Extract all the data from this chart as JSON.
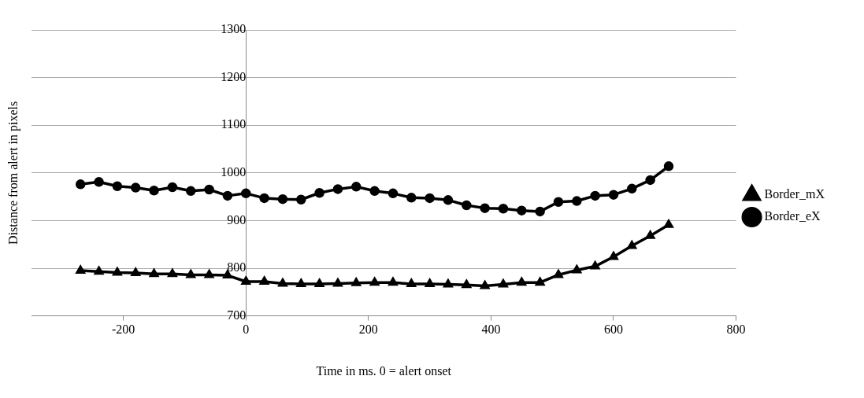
{
  "chart_data": {
    "type": "line",
    "xlabel": "Time in ms. 0 = alert onset",
    "ylabel": "Distance from alert in pixels",
    "x": [
      -270,
      -240,
      -210,
      -180,
      -150,
      -120,
      -90,
      -60,
      -30,
      0,
      30,
      60,
      90,
      120,
      150,
      180,
      210,
      240,
      270,
      300,
      330,
      360,
      390,
      420,
      450,
      480,
      510,
      540,
      570,
      600,
      630,
      660,
      690
    ],
    "series": [
      {
        "name": "Border_mX",
        "color": "#000000",
        "marker": "triangle",
        "values": [
          795,
          793,
          791,
          790,
          788,
          788,
          786,
          786,
          785,
          772,
          772,
          768,
          767,
          767,
          768,
          769,
          770,
          770,
          767,
          767,
          766,
          765,
          763,
          766,
          770,
          770,
          786,
          796,
          804,
          824,
          847,
          868,
          891
        ]
      },
      {
        "name": "Border_eX",
        "color": "#000000",
        "marker": "circle",
        "values": [
          976,
          981,
          972,
          969,
          963,
          970,
          962,
          965,
          952,
          957,
          947,
          945,
          944,
          958,
          966,
          971,
          962,
          957,
          948,
          947,
          943,
          932,
          926,
          925,
          921,
          919,
          939,
          941,
          952,
          954,
          967,
          985,
          1014
        ]
      }
    ],
    "xlim": [
      -350,
      800
    ],
    "xticks": [
      -200,
      0,
      200,
      400,
      600,
      800
    ],
    "ylim": [
      700,
      1300
    ],
    "yticks": [
      700,
      800,
      900,
      1000,
      1100,
      1200,
      1300
    ],
    "grid": "y",
    "legend": "right",
    "line_style": "solid"
  }
}
